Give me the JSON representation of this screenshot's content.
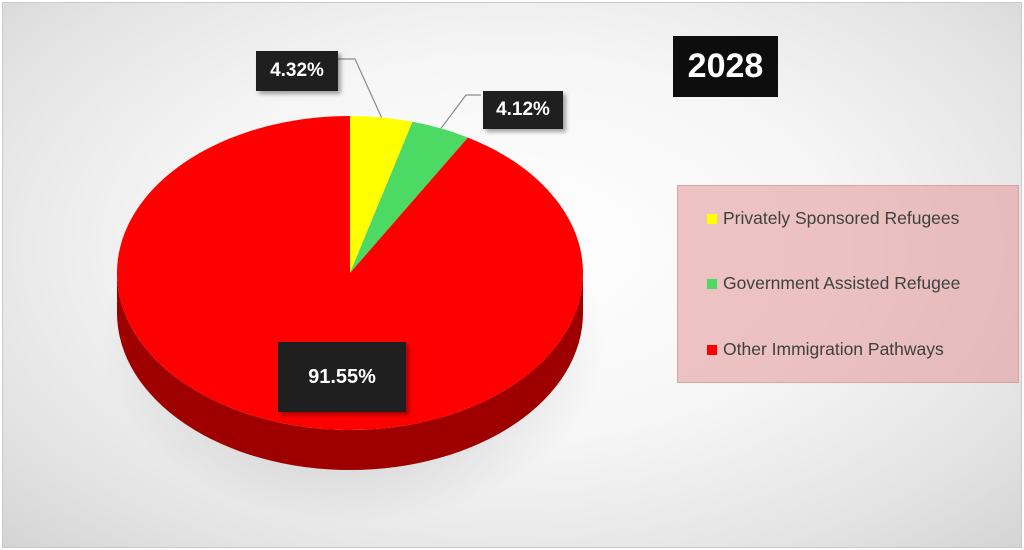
{
  "chart_data": {
    "type": "pie",
    "title": "2028",
    "categories": [
      "Privately Sponsored Refugees",
      "Government Assisted Refugee",
      "Other Immigration Pathways"
    ],
    "values": [
      4.32,
      4.12,
      91.55
    ],
    "data_labels": [
      "4.32%",
      "4.12%",
      "91.55%"
    ],
    "colors": [
      "#FFFF00",
      "#4CD964",
      "#FF0000"
    ],
    "style": "3d",
    "legend_position": "right"
  }
}
